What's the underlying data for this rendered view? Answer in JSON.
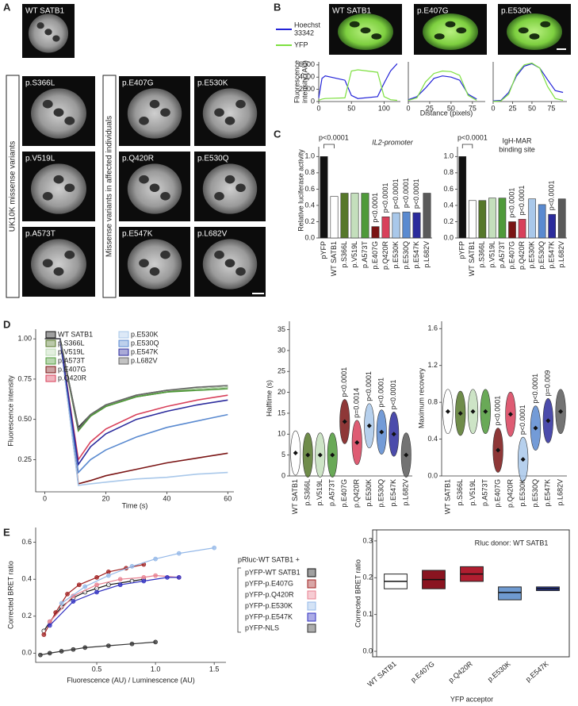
{
  "panel_labels": {
    "a": "A",
    "b": "B",
    "c": "C",
    "d": "D",
    "e": "E"
  },
  "panel_a": {
    "reference": "WT SATB1",
    "uk10k_label": "UK10K missense variants",
    "uk10k": [
      "p.S366L",
      "p.V519L",
      "p.A573T"
    ],
    "affected_label": "Missense variants in affected individuals",
    "affected": [
      "p.E407G",
      "p.E530K",
      "p.Q420R",
      "p.E530Q",
      "p.E547K",
      "p.L682V"
    ]
  },
  "panel_b_images": [
    "WT SATB1",
    "p.E407G",
    "p.E530K"
  ],
  "chart_data": [
    {
      "type": "line",
      "ylabel": [
        "Fluorescence",
        "intensity (AU)"
      ],
      "x": [
        0,
        5,
        10,
        40,
        50,
        60,
        90,
        100,
        110,
        120
      ],
      "series": [
        {
          "name": [
            "Hoechst",
            "33342"
          ],
          "color": "#2323d8",
          "values": [
            600,
            3800,
            4200,
            3500,
            1000,
            500,
            800,
            3000,
            5000,
            6200
          ]
        },
        {
          "name": [
            "YFP"
          ],
          "color": "#7ee040",
          "values": [
            200,
            400,
            500,
            600,
            5000,
            5200,
            4800,
            800,
            300,
            200
          ]
        }
      ],
      "xlim": [
        0,
        125
      ],
      "xticks": [
        0,
        50,
        100
      ],
      "ylim": [
        0,
        6500
      ],
      "yticks": [
        0,
        2000,
        4000,
        6000
      ]
    },
    {
      "type": "line",
      "xlabel": "Distance (pixels)",
      "x": [
        0,
        10,
        20,
        30,
        40,
        50,
        60,
        70,
        80
      ],
      "series": [
        {
          "color": "#2323d8",
          "values": [
            300,
            800,
            2200,
            3800,
            4200,
            4000,
            3500,
            1200,
            400
          ]
        },
        {
          "color": "#7ee040",
          "values": [
            200,
            600,
            3200,
            4600,
            5000,
            4900,
            4300,
            1000,
            200
          ]
        }
      ],
      "xlim": [
        0,
        90
      ],
      "xticks": [
        0,
        25,
        50,
        75
      ],
      "ylim": [
        0,
        6500
      ]
    },
    {
      "type": "line",
      "x": [
        0,
        10,
        20,
        30,
        40,
        50,
        60,
        70,
        80,
        90
      ],
      "series": [
        {
          "color": "#2323d8",
          "values": [
            100,
            200,
            1500,
            4200,
            5800,
            6200,
            5500,
            3600,
            1800,
            1500
          ]
        },
        {
          "color": "#7ee040",
          "values": [
            0,
            100,
            1200,
            4500,
            6000,
            6300,
            5500,
            2500,
            500,
            200
          ]
        }
      ],
      "xlim": [
        0,
        95
      ],
      "xticks": [
        0,
        25,
        50,
        75
      ],
      "ylim": [
        0,
        6500
      ]
    },
    {
      "type": "bar",
      "title": [
        "IL2-promoter"
      ],
      "ylabel": [
        "Relative luciferase activity"
      ],
      "categories": [
        "pYFP",
        "WT SATB1",
        "p.S366L",
        "p.V519L",
        "p.A573T",
        "p.E407G",
        "p.Q420R",
        "p.E530K",
        "p.E530Q",
        "p.E547K",
        "p.L682V"
      ],
      "colors": [
        "#111111",
        "#ffffff",
        "#56782a",
        "#c4dfbc",
        "#4f9a3a",
        "#7a1414",
        "#d8405a",
        "#a9c8ea",
        "#5a8ad0",
        "#2b2b9c",
        "#5a5a5a"
      ],
      "values": [
        1.0,
        0.51,
        0.55,
        0.55,
        0.55,
        0.14,
        0.26,
        0.31,
        0.32,
        0.31,
        0.55
      ],
      "comparison_label": "p<0.0001",
      "annotations": [
        null,
        null,
        null,
        null,
        null,
        "p<0.0001",
        "p<0.0001",
        "p<0.0001",
        "p<0.0001",
        "p<0.0001",
        null
      ],
      "ylim": [
        0,
        1.12
      ],
      "yticks": [
        {
          "value": 0,
          "label": "0.0"
        },
        0.2,
        0.4,
        0.6,
        0.8,
        {
          "value": 1,
          "label": "1.0"
        }
      ]
    },
    {
      "type": "bar",
      "title": [
        "IgH-MAR",
        "binding site"
      ],
      "categories": [
        "pYFP",
        "WT SATB1",
        "p.S366L",
        "p.V519L",
        "p.A573T",
        "p.E407G",
        "p.Q420R",
        "p.E530K",
        "p.E530Q",
        "p.E547K",
        "p.L682V"
      ],
      "colors": [
        "#111111",
        "#ffffff",
        "#56782a",
        "#c4dfbc",
        "#4f9a3a",
        "#7a1414",
        "#d8405a",
        "#a9c8ea",
        "#5a8ad0",
        "#2b2b9c",
        "#5a5a5a"
      ],
      "values": [
        1.0,
        0.46,
        0.46,
        0.49,
        0.49,
        0.2,
        0.23,
        0.48,
        0.41,
        0.29,
        0.48
      ],
      "comparison_label": "p<0.0001",
      "annotations": [
        null,
        null,
        null,
        null,
        null,
        "p<0.0001",
        "p<0.0001",
        null,
        null,
        "p<0.0001",
        null
      ],
      "ylim": [
        0,
        1.12
      ],
      "yticks": [
        {
          "value": 0,
          "label": "0.0"
        },
        0.2,
        0.4,
        0.6,
        0.8,
        {
          "value": 1,
          "label": "1.0"
        }
      ]
    },
    {
      "type": "line",
      "xlabel": "Time (s)",
      "ylabel": [
        "Fluorescence intensity"
      ],
      "x": [
        0,
        5,
        11,
        15,
        20,
        30,
        40,
        50,
        60
      ],
      "series": [
        {
          "name": "WT SATB1",
          "color": "#111111",
          "values": [
            1,
            1,
            0.45,
            0.53,
            0.59,
            0.65,
            0.68,
            0.69,
            0.7
          ]
        },
        {
          "name": "p.S366L",
          "color": "#56782a",
          "values": [
            1,
            1,
            0.43,
            0.52,
            0.58,
            0.64,
            0.67,
            0.69,
            0.7
          ]
        },
        {
          "name": "p.V519L",
          "color": "#b8d8b0",
          "values": [
            1,
            1,
            0.44,
            0.53,
            0.59,
            0.65,
            0.68,
            0.69,
            0.7
          ]
        },
        {
          "name": "p.A573T",
          "color": "#4f9a3a",
          "values": [
            1,
            1,
            0.43,
            0.52,
            0.58,
            0.64,
            0.67,
            0.68,
            0.69
          ]
        },
        {
          "name": "p.E407G",
          "color": "#7a1414",
          "values": [
            1,
            1,
            0.1,
            0.12,
            0.15,
            0.19,
            0.23,
            0.26,
            0.29
          ]
        },
        {
          "name": "p.Q420R",
          "color": "#d8405a",
          "values": [
            1,
            1,
            0.25,
            0.36,
            0.44,
            0.53,
            0.58,
            0.62,
            0.65
          ]
        },
        {
          "name": "p.E530K",
          "color": "#a9c8ea",
          "values": [
            1,
            1,
            0.09,
            0.1,
            0.11,
            0.13,
            0.14,
            0.16,
            0.17
          ]
        },
        {
          "name": "p.E530Q",
          "color": "#5a8ad0",
          "values": [
            1,
            1,
            0.17,
            0.25,
            0.31,
            0.39,
            0.45,
            0.49,
            0.53
          ]
        },
        {
          "name": "p.E547K",
          "color": "#2b2b9c",
          "values": [
            1,
            1,
            0.22,
            0.33,
            0.41,
            0.5,
            0.55,
            0.59,
            0.62
          ]
        },
        {
          "name": "p.L682V",
          "color": "#666666",
          "values": [
            1,
            1,
            0.44,
            0.53,
            0.59,
            0.65,
            0.68,
            0.7,
            0.71
          ]
        }
      ],
      "xlim": [
        -3,
        62
      ],
      "xticks": [
        0,
        20,
        40,
        60
      ],
      "ylim": [
        0.05,
        1.06
      ],
      "yticks": [
        0.25,
        {
          "value": 0.5,
          "label": "0.50"
        },
        0.75,
        {
          "value": 1,
          "label": "1.00"
        }
      ]
    },
    {
      "type": "violin",
      "ylabel": [
        "Halftime (s)"
      ],
      "categories": [
        "WT SATB1",
        "p.S366L",
        "p.V519L",
        "p.A573T",
        "p.E407G",
        "p.Q420R",
        "p.E530K",
        "p.E530Q",
        "p.E547K",
        "p.L682V"
      ],
      "colors": [
        "#ffffff",
        "#56782a",
        "#c4dfbc",
        "#4f9a3a",
        "#7a1414",
        "#d8405a",
        "#a9c8ea",
        "#5a8ad0",
        "#2b2b9c",
        "#5a5a5a"
      ],
      "values": [
        5.5,
        5,
        5,
        5,
        13,
        8,
        12,
        10.5,
        10,
        5
      ],
      "annotations": [
        null,
        null,
        null,
        null,
        "p<0.0001",
        "p=0.0014",
        "p<0.0001",
        "p<0.0001",
        "p<0.0001",
        null
      ],
      "ylim": [
        0,
        37
      ],
      "yticks": [
        0,
        5,
        10,
        15,
        20,
        25,
        30,
        35
      ]
    },
    {
      "type": "violin",
      "ylabel": [
        "Maximum recovery"
      ],
      "categories": [
        "WT SATB1",
        "p.S366L",
        "p.V519L",
        "p.A573T",
        "p.E407G",
        "p.Q420R",
        "p.E530K",
        "p.E530Q",
        "p.E547K",
        "p.L682V"
      ],
      "colors": [
        "#ffffff",
        "#56782a",
        "#c4dfbc",
        "#4f9a3a",
        "#7a1414",
        "#d8405a",
        "#a9c8ea",
        "#5a8ad0",
        "#2b2b9c",
        "#5a5a5a"
      ],
      "values": [
        0.7,
        0.68,
        0.7,
        0.7,
        0.28,
        0.67,
        0.18,
        0.52,
        0.6,
        0.7
      ],
      "annotations": [
        null,
        null,
        null,
        null,
        "p<0.0001",
        null,
        "p<0.0001",
        "p<0.0001",
        "p=0.009",
        null
      ],
      "ylim": [
        0,
        1.68
      ],
      "yticks": [
        {
          "value": 0,
          "label": "0.0"
        },
        0.4,
        0.8,
        1.2,
        1.6
      ]
    },
    {
      "type": "scatter",
      "xlabel": "Fluorescence (AU) / Luminescence (AU)",
      "ylabel": [
        "Corrected BRET ratio"
      ],
      "legend_title": "pRluc-WT SATB1 +",
      "series": [
        {
          "name": "pYFP-WT SATB1",
          "color": "#111111",
          "x": [
            0.05,
            0.1,
            0.2,
            0.3,
            0.4,
            0.5,
            0.6,
            0.8,
            0.9
          ],
          "values": [
            0.12,
            0.17,
            0.25,
            0.3,
            0.33,
            0.35,
            0.37,
            0.39,
            0.4
          ]
        },
        {
          "name": "pYFP-p.E407G",
          "color": "#a02020",
          "x": [
            0.05,
            0.15,
            0.25,
            0.35,
            0.5,
            0.6,
            0.75,
            0.9
          ],
          "values": [
            0.1,
            0.22,
            0.32,
            0.37,
            0.41,
            0.44,
            0.46,
            0.48
          ]
        },
        {
          "name": "pYFP-p.Q420R",
          "color": "#e88090",
          "x": [
            0.1,
            0.3,
            0.5,
            0.7,
            0.9,
            1.0,
            1.2
          ],
          "values": [
            0.17,
            0.31,
            0.37,
            0.4,
            0.41,
            0.42,
            0.41
          ]
        },
        {
          "name": "pYFP-p.E530K",
          "color": "#94b8e8",
          "x": [
            0.2,
            0.4,
            0.6,
            0.8,
            1.0,
            1.2,
            1.5
          ],
          "values": [
            0.27,
            0.36,
            0.42,
            0.47,
            0.51,
            0.54,
            0.57
          ]
        },
        {
          "name": "pYFP-p.E547K",
          "color": "#3030c0",
          "x": [
            0.1,
            0.3,
            0.5,
            0.7,
            0.9,
            1.1,
            1.2
          ],
          "values": [
            0.15,
            0.28,
            0.33,
            0.37,
            0.39,
            0.41,
            0.41
          ]
        },
        {
          "name": "pYFP-NLS",
          "color": "#333333",
          "x": [
            0.02,
            0.1,
            0.2,
            0.3,
            0.4,
            0.6,
            0.8,
            1.0
          ],
          "values": [
            -0.01,
            0.0,
            0.01,
            0.02,
            0.03,
            0.04,
            0.05,
            0.06
          ]
        }
      ],
      "xlim": [
        -0.02,
        1.6
      ],
      "xticks": [
        0.5,
        {
          "value": 1,
          "label": "1.0"
        },
        1.5
      ],
      "ylim": [
        -0.05,
        0.68
      ],
      "yticks": [
        {
          "value": 0,
          "label": "0.0"
        },
        0.2,
        0.4,
        0.6
      ]
    },
    {
      "type": "box",
      "title": [
        "Rluc donor: WT SATB1"
      ],
      "xlabel": "YFP acceptor",
      "ylabel": [
        "Corrected BRET ratio"
      ],
      "categories": [
        "WT SATB1",
        "p.E407G",
        "p.Q420R",
        "p.E530K",
        "p.E547K"
      ],
      "colors": [
        "#ffffff",
        "#8a1420",
        "#b01e30",
        "#6f9ad0",
        "#2a3aa0"
      ],
      "q1": [
        0.17,
        0.17,
        0.19,
        0.14,
        0.165
      ],
      "median": [
        0.19,
        0.195,
        0.21,
        0.16,
        0.17
      ],
      "q3": [
        0.21,
        0.22,
        0.23,
        0.175,
        0.175
      ],
      "ylim": [
        -0.015,
        0.33
      ],
      "yticks": [
        {
          "value": 0,
          "label": "0.0"
        },
        0.1,
        0.2,
        0.3
      ]
    }
  ]
}
